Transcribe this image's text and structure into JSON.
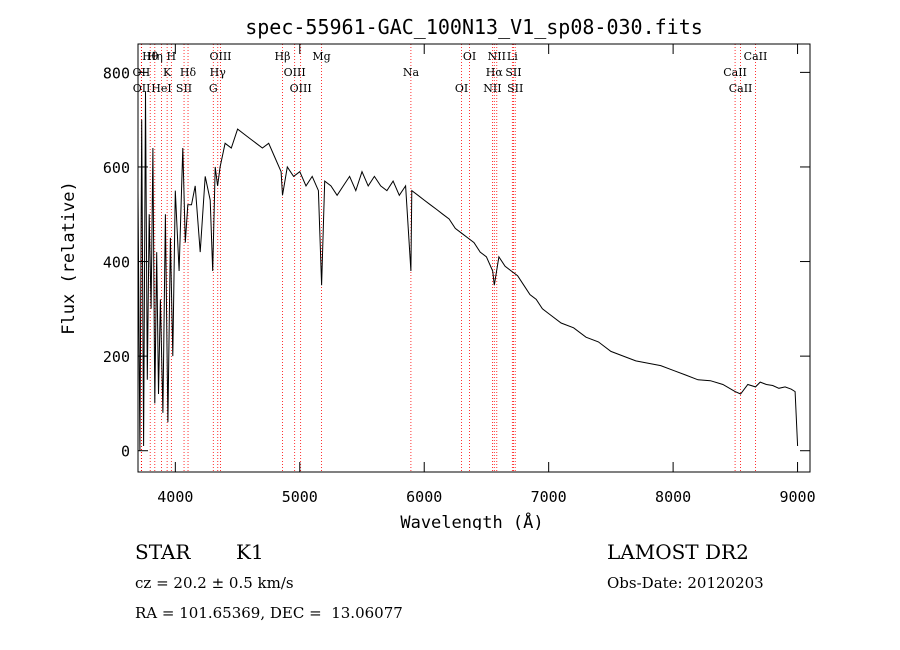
{
  "chart_data": {
    "type": "line",
    "title": "spec-55961-GAC_100N13_V1_sp08-030.fits",
    "xlabel": "Wavelength (Å)",
    "ylabel": "Flux (relative)",
    "xlim": [
      3700,
      9100
    ],
    "ylim": [
      -45,
      860
    ],
    "xticks": [
      4000,
      5000,
      6000,
      7000,
      8000,
      9000
    ],
    "yticks": [
      0,
      200,
      400,
      600,
      800
    ],
    "grid": false,
    "line_color": "#000000",
    "marker_color": "#ff0000",
    "series": [
      {
        "x": [
          3700,
          3715,
          3730,
          3745,
          3760,
          3775,
          3790,
          3805,
          3820,
          3835,
          3850,
          3865,
          3880,
          3900,
          3920,
          3940,
          3960,
          3980,
          4000,
          4030,
          4060,
          4080,
          4100,
          4130,
          4160,
          4200,
          4240,
          4280,
          4300,
          4320,
          4340,
          4360,
          4400,
          4450,
          4500,
          4550,
          4600,
          4650,
          4700,
          4750,
          4800,
          4850,
          4861,
          4900,
          4950,
          5000,
          5050,
          5100,
          5150,
          5175,
          5200,
          5250,
          5300,
          5350,
          5400,
          5450,
          5500,
          5550,
          5600,
          5650,
          5700,
          5750,
          5800,
          5850,
          5893,
          5900,
          5950,
          6000,
          6050,
          6100,
          6150,
          6200,
          6250,
          6300,
          6350,
          6400,
          6450,
          6500,
          6550,
          6563,
          6600,
          6650,
          6700,
          6750,
          6800,
          6850,
          6900,
          6950,
          7000,
          7100,
          7200,
          7300,
          7400,
          7500,
          7600,
          7700,
          7800,
          7900,
          8000,
          8100,
          8200,
          8300,
          8400,
          8498,
          8542,
          8600,
          8662,
          8700,
          8750,
          8800,
          8850,
          8900,
          8950,
          8980,
          9000
        ],
        "y": [
          550,
          0,
          700,
          10,
          760,
          150,
          500,
          300,
          640,
          100,
          420,
          120,
          320,
          80,
          500,
          60,
          450,
          200,
          550,
          380,
          640,
          440,
          520,
          520,
          560,
          420,
          580,
          530,
          380,
          600,
          560,
          600,
          650,
          640,
          680,
          670,
          660,
          650,
          640,
          650,
          620,
          590,
          540,
          600,
          580,
          590,
          560,
          580,
          550,
          350,
          570,
          560,
          540,
          560,
          580,
          550,
          590,
          560,
          580,
          560,
          550,
          570,
          540,
          560,
          380,
          550,
          540,
          530,
          520,
          510,
          500,
          490,
          470,
          460,
          450,
          440,
          420,
          410,
          380,
          350,
          410,
          390,
          380,
          370,
          350,
          330,
          320,
          300,
          290,
          270,
          260,
          240,
          230,
          210,
          200,
          190,
          185,
          180,
          170,
          160,
          150,
          148,
          140,
          125,
          120,
          140,
          135,
          145,
          140,
          138,
          132,
          135,
          130,
          125,
          10
        ]
      }
    ],
    "lines": [
      {
        "label": "Hθ",
        "x": 3798
      },
      {
        "label": "OII",
        "x": 3727
      },
      {
        "label": "OII",
        "x": 3729
      },
      {
        "label": "Hη",
        "x": 3835
      },
      {
        "label": "K",
        "x": 3934
      },
      {
        "label": "HeI",
        "x": 3889
      },
      {
        "label": "H",
        "x": 3968
      },
      {
        "label": "Hδ",
        "x": 4102
      },
      {
        "label": "SII",
        "x": 4070
      },
      {
        "label": "OIII",
        "x": 4363
      },
      {
        "label": "Hγ",
        "x": 4341
      },
      {
        "label": "G",
        "x": 4305
      },
      {
        "label": "Hβ",
        "x": 4861
      },
      {
        "label": "OIII",
        "x": 4959
      },
      {
        "label": "OIII",
        "x": 5007
      },
      {
        "label": "Mg",
        "x": 5175
      },
      {
        "label": "Na",
        "x": 5893
      },
      {
        "label": "OI",
        "x": 6300
      },
      {
        "label": "OI",
        "x": 6364
      },
      {
        "label": "Hα",
        "x": 6563
      },
      {
        "label": "NII",
        "x": 6548
      },
      {
        "label": "NII",
        "x": 6583
      },
      {
        "label": "SII",
        "x": 6717
      },
      {
        "label": "SII",
        "x": 6731
      },
      {
        "label": "Li",
        "x": 6708
      },
      {
        "label": "CaII",
        "x": 8498
      },
      {
        "label": "CaII",
        "x": 8542
      },
      {
        "label": "CaII",
        "x": 8662
      }
    ]
  },
  "info": {
    "class_label": "STAR",
    "subclass": "K1",
    "survey": "LAMOST DR2",
    "redshift": "cz = 20.2 ± 0.5 km/s",
    "obs_date": "Obs-Date: 20120203",
    "coords": "RA = 101.65369, DEC =  13.06077"
  }
}
